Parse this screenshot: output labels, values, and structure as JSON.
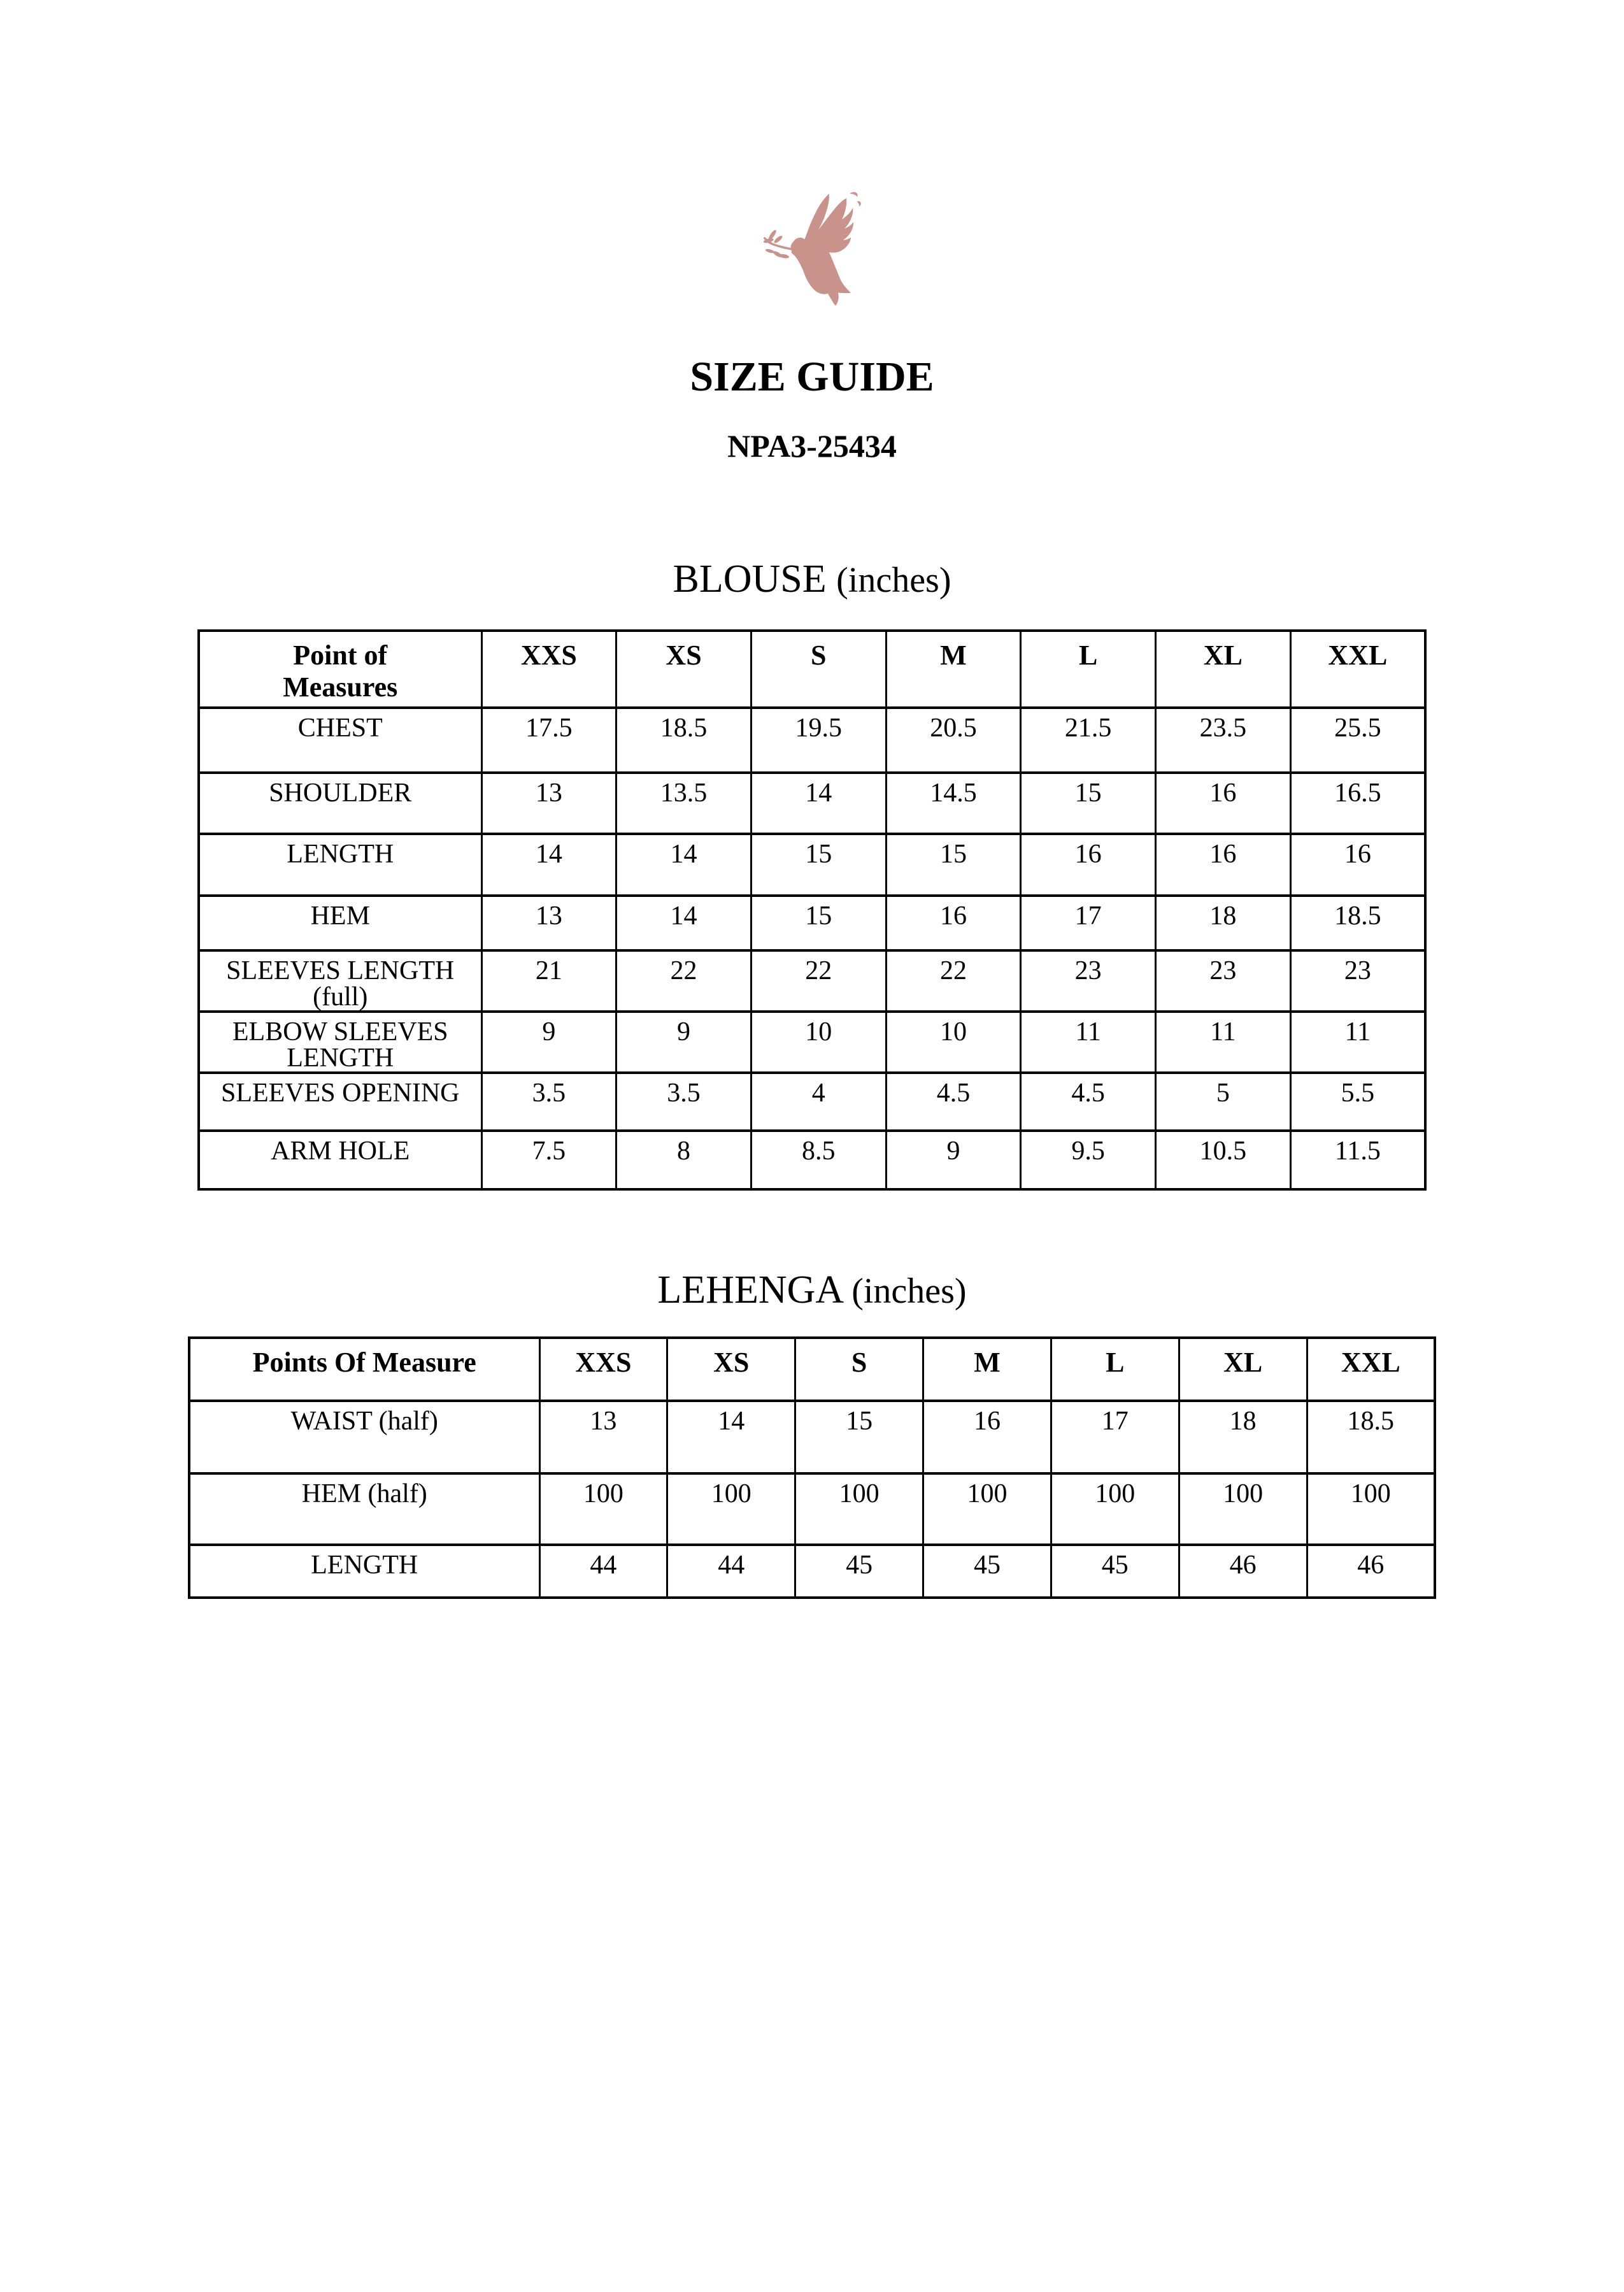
{
  "logo": {
    "name": "dove-with-olive-branch",
    "color": "#c9938c"
  },
  "title": "SIZE GUIDE",
  "product_code": "NPA3-25434",
  "blouse_table": {
    "title": "BLOUSE",
    "unit": "(inches)",
    "corner": {
      "line1": "Point of",
      "line2": "Measures"
    },
    "sizes": [
      "XXS",
      "XS",
      "S",
      "M",
      "L",
      "XL",
      "XXL"
    ],
    "rows": [
      {
        "label": "CHEST",
        "label2": "",
        "values": [
          "17.5",
          "18.5",
          "19.5",
          "20.5",
          "21.5",
          "23.5",
          "25.5"
        ]
      },
      {
        "label": "SHOULDER",
        "label2": "",
        "values": [
          "13",
          "13.5",
          "14",
          "14.5",
          "15",
          "16",
          "16.5"
        ]
      },
      {
        "label": "LENGTH",
        "label2": "",
        "values": [
          "14",
          "14",
          "15",
          "15",
          "16",
          "16",
          "16"
        ]
      },
      {
        "label": "HEM",
        "label2": "",
        "values": [
          "13",
          "14",
          "15",
          "16",
          "17",
          "18",
          "18.5"
        ]
      },
      {
        "label": "SLEEVES LENGTH",
        "label2": "(full)",
        "values": [
          "21",
          "22",
          "22",
          "22",
          "23",
          "23",
          "23"
        ]
      },
      {
        "label": "ELBOW SLEEVES",
        "label2": "LENGTH",
        "values": [
          "9",
          "9",
          "10",
          "10",
          "11",
          "11",
          "11"
        ]
      },
      {
        "label": "SLEEVES OPENING",
        "label2": "",
        "values": [
          "3.5",
          "3.5",
          "4",
          "4.5",
          "4.5",
          "5",
          "5.5"
        ]
      },
      {
        "label": "ARM HOLE",
        "label2": "",
        "values": [
          "7.5",
          "8",
          "8.5",
          "9",
          "9.5",
          "10.5",
          "11.5"
        ]
      }
    ]
  },
  "lehenga_table": {
    "title": "LEHENGA",
    "unit": "(inches)",
    "corner": {
      "line1": "Points Of Measure",
      "line2": ""
    },
    "sizes": [
      "XXS",
      "XS",
      "S",
      "M",
      "L",
      "XL",
      "XXL"
    ],
    "rows": [
      {
        "label": "WAIST (half)",
        "label2": "",
        "values": [
          "13",
          "14",
          "15",
          "16",
          "17",
          "18",
          "18.5"
        ]
      },
      {
        "label": "HEM (half)",
        "label2": "",
        "values": [
          "100",
          "100",
          "100",
          "100",
          "100",
          "100",
          "100"
        ]
      },
      {
        "label": "LENGTH",
        "label2": "",
        "values": [
          "44",
          "44",
          "45",
          "45",
          "45",
          "46",
          "46"
        ]
      }
    ]
  }
}
